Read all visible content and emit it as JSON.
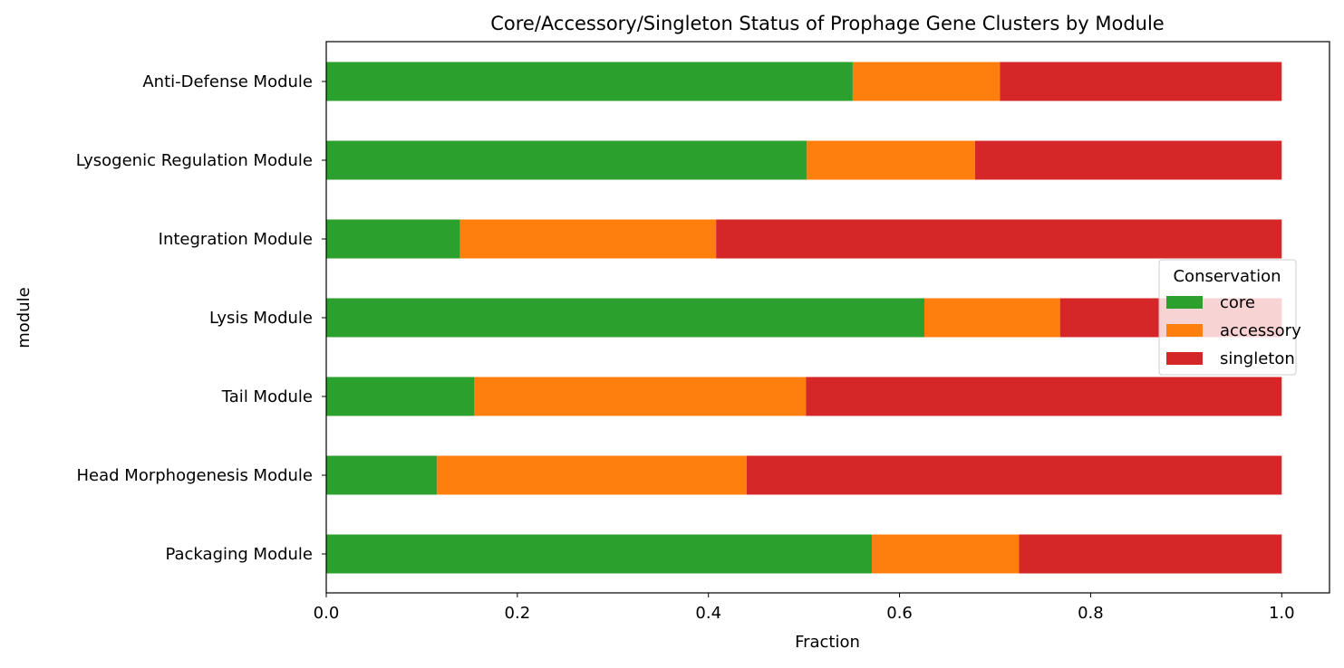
{
  "chart_data": {
    "type": "bar",
    "orientation": "horizontal",
    "stacked": true,
    "title": "Core/Accessory/Singleton Status of Prophage Gene Clusters by Module",
    "xlabel": "Fraction",
    "ylabel": "module",
    "xlim": [
      0,
      1.05
    ],
    "xticks": [
      "0.0",
      "0.2",
      "0.4",
      "0.6",
      "0.8",
      "1.0"
    ],
    "grid": false,
    "categories": [
      "Anti-Defense Module",
      "Lysogenic Regulation Module",
      "Integration Module",
      "Lysis Module",
      "Tail Module",
      "Head Morphogenesis Module",
      "Packaging Module"
    ],
    "series": [
      {
        "name": "core",
        "color": "#2ca02c",
        "values": [
          0.551,
          0.503,
          0.14,
          0.626,
          0.155,
          0.116,
          0.571
        ]
      },
      {
        "name": "accessory",
        "color": "#ff7f0e",
        "values": [
          0.154,
          0.176,
          0.268,
          0.142,
          0.347,
          0.324,
          0.154
        ]
      },
      {
        "name": "singleton",
        "color": "#d62728",
        "values": [
          0.295,
          0.321,
          0.592,
          0.232,
          0.498,
          0.56,
          0.275
        ]
      }
    ],
    "legend": {
      "title": "Conservation",
      "placement": "center-right"
    }
  }
}
